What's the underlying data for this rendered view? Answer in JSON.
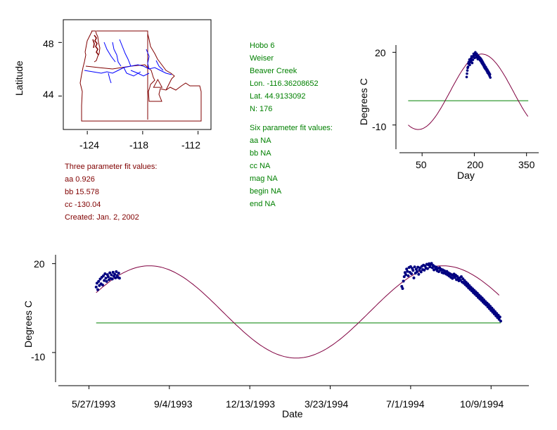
{
  "colors": {
    "map_border": "#800000",
    "river": "#0000ff",
    "fit_curve": "#800040",
    "points": "#000080",
    "baseline": "#008000",
    "info_green": "#008000",
    "info_red": "#800000",
    "axis": "#000000"
  },
  "station_info": {
    "name": "Hobo 6",
    "town": "Weiser",
    "stream": "Beaver Creek",
    "lon": "Lon. -116.36208652",
    "lat": "Lat. 44.9133092",
    "n": "N: 176"
  },
  "six_param": {
    "heading": "Six parameter fit values:",
    "aa": "aa NA",
    "bb": "bb NA",
    "cc": "cc NA",
    "mag": "mag NA",
    "begin": "begin NA",
    "end": "end NA"
  },
  "three_param": {
    "heading": "Three parameter fit values:",
    "aa": "aa 0.926",
    "bb": "bb 15.578",
    "cc": "cc -130.04",
    "created": "Created:   Jan. 2, 2002"
  },
  "chart_data": [
    {
      "type": "map",
      "ylabel": "Latitude",
      "x_ticks": [
        "-124",
        "-118",
        "-112"
      ],
      "x_tick_values": [
        -124,
        -118,
        -112
      ],
      "y_ticks": [
        "44",
        "48"
      ],
      "y_tick_values": [
        44,
        48
      ],
      "xlim": [
        -126.6,
        -110.6
      ],
      "ylim": [
        41.5,
        49.7
      ],
      "marker": {
        "shape": "triangle",
        "lon": -116.362,
        "lat": 44.913
      }
    },
    {
      "type": "scatter",
      "xlabel": "Day",
      "ylabel": "Degrees C",
      "x_ticks": [
        "50",
        "200",
        "350"
      ],
      "x_tick_values": [
        50,
        200,
        350
      ],
      "y_ticks": [
        "-10",
        "20"
      ],
      "y_tick_values": [
        -10,
        20
      ],
      "xlim": [
        -15,
        385
      ],
      "ylim": [
        -20,
        23
      ],
      "fit": {
        "aa": 0.926,
        "bb": 15.578,
        "cc": -130.04,
        "x_range": [
          10,
          355
        ]
      },
      "baseline": {
        "y": 0,
        "x_range": [
          10,
          355
        ]
      },
      "points_description": "daily temperatures days 178-316",
      "points": [
        [
          178,
          9.8
        ],
        [
          179,
          11.2
        ],
        [
          180,
          12.5
        ],
        [
          181,
          13.6
        ],
        [
          182,
          14.0
        ],
        [
          183,
          15.3
        ],
        [
          184,
          16.0
        ],
        [
          185,
          15.2
        ],
        [
          186,
          17.0
        ],
        [
          187,
          14.8
        ],
        [
          188,
          16.8
        ],
        [
          189,
          15.9
        ],
        [
          190,
          17.4
        ],
        [
          191,
          16.2
        ],
        [
          192,
          18.3
        ],
        [
          193,
          17.0
        ],
        [
          194,
          15.6
        ],
        [
          195,
          18.1
        ],
        [
          196,
          16.9
        ],
        [
          197,
          18.5
        ],
        [
          198,
          19.4
        ],
        [
          199,
          18.0
        ],
        [
          200,
          19.1
        ],
        [
          201,
          17.7
        ],
        [
          202,
          19.6
        ],
        [
          203,
          20.0
        ],
        [
          204,
          18.8
        ],
        [
          205,
          19.3
        ],
        [
          206,
          17.9
        ],
        [
          207,
          19.4
        ],
        [
          208,
          18.4
        ],
        [
          209,
          18.1
        ],
        [
          210,
          17.2
        ],
        [
          211,
          18.6
        ],
        [
          212,
          17.6
        ],
        [
          213,
          18.2
        ],
        [
          214,
          17.4
        ],
        [
          215,
          17.9
        ],
        [
          216,
          16.8
        ],
        [
          217,
          17.6
        ],
        [
          218,
          16.5
        ],
        [
          219,
          17.3
        ],
        [
          220,
          16.0
        ],
        [
          221,
          16.8
        ],
        [
          222,
          15.5
        ],
        [
          223,
          16.3
        ],
        [
          224,
          15.1
        ],
        [
          225,
          15.8
        ],
        [
          226,
          14.6
        ],
        [
          227,
          15.2
        ],
        [
          228,
          14.0
        ],
        [
          229,
          14.8
        ],
        [
          230,
          13.5
        ],
        [
          231,
          14.2
        ],
        [
          232,
          13.1
        ],
        [
          233,
          13.9
        ],
        [
          234,
          12.8
        ],
        [
          235,
          13.3
        ],
        [
          236,
          12.2
        ],
        [
          237,
          12.9
        ],
        [
          238,
          11.6
        ],
        [
          239,
          12.4
        ],
        [
          240,
          11.3
        ],
        [
          241,
          11.9
        ],
        [
          242,
          10.8
        ],
        [
          243,
          11.4
        ],
        [
          244,
          10.2
        ],
        [
          245,
          10.9
        ],
        [
          246,
          9.6
        ]
      ]
    },
    {
      "type": "scatter",
      "xlabel": "Date",
      "ylabel": "Degrees C",
      "x_ticks": [
        "5/27/1993",
        "9/4/1993",
        "12/13/1993",
        "3/23/1994",
        "7/1/1994",
        "10/9/1994"
      ],
      "x_tick_values": [
        "1993-05-27",
        "1993-09-04",
        "1993-12-13",
        "1994-03-23",
        "1994-07-01",
        "1994-10-09"
      ],
      "y_ticks": [
        "-10",
        "20"
      ],
      "y_tick_values": [
        -10,
        20
      ],
      "xlim": [
        "1993-04-19",
        "1994-11-25"
      ],
      "ylim": [
        -20,
        23
      ],
      "fit": {
        "aa": 0.926,
        "bb": 15.578,
        "cc": -130.04,
        "x_range": [
          "1993-06-05",
          "1994-10-21"
        ]
      },
      "baseline": {
        "y": 0,
        "x_range": [
          "1993-06-05",
          "1994-10-21"
        ]
      },
      "series": [
        {
          "values": [
            [
              "1993-06-05",
              12.1
            ],
            [
              "1993-06-06",
              13.4
            ],
            [
              "1993-06-07",
              11.2
            ],
            [
              "1993-06-08",
              14.0
            ],
            [
              "1993-06-09",
              12.6
            ],
            [
              "1993-06-10",
              14.8
            ],
            [
              "1993-06-11",
              13.2
            ],
            [
              "1993-06-12",
              15.4
            ],
            [
              "1993-06-13",
              12.8
            ],
            [
              "1993-06-14",
              15.9
            ],
            [
              "1993-06-15",
              14.3
            ],
            [
              "1993-06-16",
              16.6
            ],
            [
              "1993-06-17",
              15.1
            ],
            [
              "1993-06-18",
              14.0
            ],
            [
              "1993-06-19",
              16.3
            ],
            [
              "1993-06-20",
              15.6
            ],
            [
              "1993-06-21",
              14.6
            ],
            [
              "1993-06-22",
              16.9
            ],
            [
              "1993-06-23",
              15.0
            ],
            [
              "1993-06-24",
              16.2
            ],
            [
              "1993-06-25",
              14.8
            ],
            [
              "1993-06-26",
              17.1
            ],
            [
              "1993-06-27",
              15.7
            ],
            [
              "1993-06-28",
              16.4
            ],
            [
              "1993-06-29",
              15.2
            ],
            [
              "1993-06-30",
              17.3
            ],
            [
              "1993-07-01",
              16.0
            ],
            [
              "1993-07-02",
              15.4
            ],
            [
              "1993-07-03",
              16.8
            ],
            [
              "1993-07-04",
              15.1
            ]
          ]
        },
        {
          "values": [
            [
              "1994-06-20",
              12.3
            ],
            [
              "1994-06-21",
              11.6
            ],
            [
              "1994-06-22",
              14.1
            ],
            [
              "1994-06-23",
              15.6
            ],
            [
              "1994-06-24",
              17.0
            ],
            [
              "1994-06-25",
              16.3
            ],
            [
              "1994-06-26",
              18.2
            ],
            [
              "1994-06-27",
              17.4
            ],
            [
              "1994-06-28",
              15.9
            ],
            [
              "1994-06-29",
              18.7
            ],
            [
              "1994-06-30",
              17.1
            ],
            [
              "1994-07-01",
              19.0
            ],
            [
              "1994-07-02",
              16.6
            ],
            [
              "1994-07-03",
              18.4
            ],
            [
              "1994-07-04",
              17.7
            ],
            [
              "1994-07-05",
              15.2
            ],
            [
              "1994-07-06",
              18.9
            ],
            [
              "1994-07-07",
              16.8
            ],
            [
              "1994-07-08",
              18.1
            ],
            [
              "1994-07-09",
              17.3
            ],
            [
              "1994-07-10",
              18.8
            ],
            [
              "1994-07-11",
              16.4
            ],
            [
              "1994-07-12",
              17.9
            ],
            [
              "1994-07-13",
              18.6
            ],
            [
              "1994-07-14",
              17.2
            ],
            [
              "1994-07-15",
              19.1
            ],
            [
              "1994-07-16",
              18.0
            ],
            [
              "1994-07-17",
              19.5
            ],
            [
              "1994-07-18",
              17.8
            ],
            [
              "1994-07-19",
              19.2
            ],
            [
              "1994-07-20",
              18.5
            ],
            [
              "1994-07-21",
              19.8
            ],
            [
              "1994-07-22",
              18.3
            ],
            [
              "1994-07-23",
              19.6
            ],
            [
              "1994-07-24",
              20.0
            ],
            [
              "1994-07-25",
              18.9
            ],
            [
              "1994-07-26",
              19.7
            ],
            [
              "1994-07-27",
              20.1
            ],
            [
              "1994-07-28",
              18.6
            ],
            [
              "1994-07-29",
              19.4
            ],
            [
              "1994-07-30",
              17.9
            ],
            [
              "1994-07-31",
              19.0
            ],
            [
              "1994-08-01",
              18.2
            ],
            [
              "1994-08-02",
              18.8
            ],
            [
              "1994-08-03",
              17.6
            ],
            [
              "1994-08-04",
              18.4
            ],
            [
              "1994-08-05",
              17.3
            ],
            [
              "1994-08-06",
              18.6
            ],
            [
              "1994-08-07",
              17.8
            ],
            [
              "1994-08-08",
              18.1
            ],
            [
              "1994-08-09",
              17.0
            ],
            [
              "1994-08-10",
              17.9
            ],
            [
              "1994-08-11",
              16.8
            ],
            [
              "1994-08-12",
              17.6
            ],
            [
              "1994-08-13",
              17.1
            ],
            [
              "1994-08-14",
              16.5
            ],
            [
              "1994-08-15",
              17.4
            ],
            [
              "1994-08-16",
              16.2
            ],
            [
              "1994-08-17",
              16.9
            ],
            [
              "1994-08-18",
              15.8
            ],
            [
              "1994-08-19",
              16.6
            ],
            [
              "1994-08-20",
              15.4
            ],
            [
              "1994-08-21",
              16.3
            ],
            [
              "1994-08-22",
              15.0
            ],
            [
              "1994-08-23",
              15.9
            ],
            [
              "1994-08-24",
              16.5
            ],
            [
              "1994-08-25",
              15.3
            ],
            [
              "1994-08-26",
              16.1
            ],
            [
              "1994-08-27",
              14.6
            ],
            [
              "1994-08-28",
              15.7
            ],
            [
              "1994-08-29",
              15.0
            ],
            [
              "1994-08-30",
              14.2
            ],
            [
              "1994-08-31",
              15.2
            ],
            [
              "1994-09-01",
              14.4
            ],
            [
              "1994-09-02",
              15.6
            ],
            [
              "1994-09-03",
              13.8
            ],
            [
              "1994-09-04",
              14.9
            ],
            [
              "1994-09-05",
              13.4
            ],
            [
              "1994-09-06",
              14.3
            ],
            [
              "1994-09-07",
              12.9
            ],
            [
              "1994-09-08",
              13.7
            ],
            [
              "1994-09-09",
              12.4
            ],
            [
              "1994-09-10",
              13.2
            ],
            [
              "1994-09-11",
              11.8
            ],
            [
              "1994-09-12",
              12.6
            ],
            [
              "1994-09-13",
              11.3
            ],
            [
              "1994-09-14",
              12.0
            ],
            [
              "1994-09-15",
              10.8
            ],
            [
              "1994-09-16",
              11.5
            ],
            [
              "1994-09-17",
              10.2
            ],
            [
              "1994-09-18",
              11.0
            ],
            [
              "1994-09-19",
              9.7
            ],
            [
              "1994-09-20",
              10.5
            ],
            [
              "1994-09-21",
              9.2
            ],
            [
              "1994-09-22",
              10.0
            ],
            [
              "1994-09-23",
              8.6
            ],
            [
              "1994-09-24",
              9.4
            ],
            [
              "1994-09-25",
              8.1
            ],
            [
              "1994-09-26",
              8.9
            ],
            [
              "1994-09-27",
              7.6
            ],
            [
              "1994-09-28",
              8.4
            ],
            [
              "1994-09-29",
              7.0
            ],
            [
              "1994-09-30",
              7.8
            ],
            [
              "1994-10-01",
              6.5
            ],
            [
              "1994-10-02",
              7.2
            ],
            [
              "1994-10-03",
              6.0
            ],
            [
              "1994-10-04",
              6.7
            ],
            [
              "1994-10-05",
              5.4
            ],
            [
              "1994-10-06",
              6.2
            ],
            [
              "1994-10-07",
              4.8
            ],
            [
              "1994-10-08",
              5.6
            ],
            [
              "1994-10-09",
              4.2
            ],
            [
              "1994-10-10",
              5.0
            ],
            [
              "1994-10-11",
              3.6
            ],
            [
              "1994-10-12",
              4.4
            ],
            [
              "1994-10-13",
              3.0
            ],
            [
              "1994-10-14",
              3.8
            ],
            [
              "1994-10-15",
              2.4
            ],
            [
              "1994-10-16",
              3.2
            ],
            [
              "1994-10-17",
              1.8
            ],
            [
              "1994-10-18",
              2.6
            ],
            [
              "1994-10-19",
              1.2
            ],
            [
              "1994-10-20",
              2.0
            ],
            [
              "1994-10-21",
              0.6
            ]
          ]
        }
      ]
    }
  ]
}
